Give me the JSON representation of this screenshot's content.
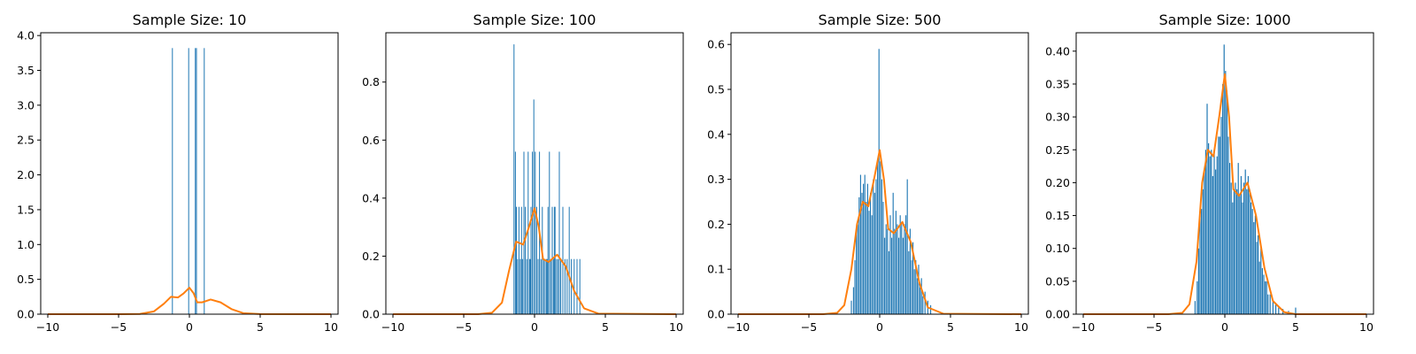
{
  "colors": {
    "hist": "#1f77b4",
    "kde": "#ff7f0e",
    "frame": "#000000"
  },
  "chart_data": [
    {
      "type": "bar",
      "title": "Sample Size: 10",
      "xlim": [
        -10.5,
        10.5
      ],
      "ylim": [
        0,
        4.04
      ],
      "xticks": [
        -10,
        -5,
        0,
        5,
        10
      ],
      "xtick_labels": [
        "−10",
        "−5",
        "0",
        "5",
        "10"
      ],
      "yticks": [
        0,
        0.5,
        1,
        1.5,
        2,
        2.5,
        3,
        3.5,
        4
      ],
      "ytick_labels": [
        "0.0",
        "0.5",
        "1.0",
        "1.5",
        "2.0",
        "2.5",
        "3.0",
        "3.5",
        "4.0"
      ],
      "bin_width": 0.026,
      "hist_bins": [
        [
          -1.2,
          3.82
        ],
        [
          -0.05,
          3.82
        ],
        [
          0.42,
          3.82
        ],
        [
          0.5,
          3.82
        ],
        [
          1.05,
          3.82
        ]
      ],
      "kde": [
        [
          -10,
          0
        ],
        [
          -5,
          0
        ],
        [
          -3.5,
          0.003
        ],
        [
          -2.5,
          0.04
        ],
        [
          -1.8,
          0.15
        ],
        [
          -1.3,
          0.25
        ],
        [
          -0.8,
          0.24
        ],
        [
          -0.4,
          0.3
        ],
        [
          0,
          0.38
        ],
        [
          0.3,
          0.3
        ],
        [
          0.55,
          0.17
        ],
        [
          0.9,
          0.17
        ],
        [
          1.5,
          0.21
        ],
        [
          2.2,
          0.17
        ],
        [
          3,
          0.07
        ],
        [
          3.8,
          0.015
        ],
        [
          5,
          0.001
        ],
        [
          10,
          0
        ]
      ]
    },
    {
      "type": "bar",
      "title": "Sample Size: 100",
      "xlim": [
        -10.5,
        10.5
      ],
      "ylim": [
        0,
        0.97
      ],
      "xticks": [
        -10,
        -5,
        0,
        5,
        10
      ],
      "xtick_labels": [
        "−10",
        "−5",
        "0",
        "5",
        "10"
      ],
      "yticks": [
        0,
        0.2,
        0.4,
        0.6,
        0.8
      ],
      "ytick_labels": [
        "0.0",
        "0.2",
        "0.4",
        "0.6",
        "0.8"
      ],
      "bin_width": 0.054,
      "hist_bins": [
        [
          -1.45,
          0.93
        ],
        [
          -1.35,
          0.56
        ],
        [
          -1.28,
          0.37
        ],
        [
          -1.2,
          0.19
        ],
        [
          -1.1,
          0.37
        ],
        [
          -1.0,
          0.19
        ],
        [
          -0.92,
          0.37
        ],
        [
          -0.85,
          0.19
        ],
        [
          -0.75,
          0.56
        ],
        [
          -0.65,
          0.37
        ],
        [
          -0.55,
          0.19
        ],
        [
          -0.45,
          0.56
        ],
        [
          -0.35,
          0.19
        ],
        [
          -0.25,
          0.37
        ],
        [
          -0.15,
          0.56
        ],
        [
          -0.05,
          0.74
        ],
        [
          0.05,
          0.56
        ],
        [
          0.15,
          0.37
        ],
        [
          0.25,
          0.19
        ],
        [
          0.35,
          0.56
        ],
        [
          0.45,
          0.19
        ],
        [
          0.55,
          0.37
        ],
        [
          0.65,
          0.19
        ],
        [
          0.75,
          0.19
        ],
        [
          0.85,
          0.19
        ],
        [
          0.95,
          0.37
        ],
        [
          1.05,
          0.56
        ],
        [
          1.15,
          0.19
        ],
        [
          1.25,
          0.37
        ],
        [
          1.35,
          0.19
        ],
        [
          1.45,
          0.37
        ],
        [
          1.55,
          0.19
        ],
        [
          1.65,
          0.19
        ],
        [
          1.75,
          0.56
        ],
        [
          1.85,
          0.19
        ],
        [
          2.0,
          0.37
        ],
        [
          2.15,
          0.19
        ],
        [
          2.3,
          0.19
        ],
        [
          2.45,
          0.37
        ],
        [
          2.6,
          0.19
        ],
        [
          2.8,
          0.19
        ],
        [
          3.0,
          0.19
        ],
        [
          3.2,
          0.19
        ],
        [
          1.4,
          0.37
        ],
        [
          0.9,
          0.19
        ],
        [
          -0.3,
          0.19
        ]
      ],
      "kde": [
        [
          -10,
          0
        ],
        [
          -4,
          0
        ],
        [
          -3,
          0.005
        ],
        [
          -2.3,
          0.04
        ],
        [
          -1.8,
          0.15
        ],
        [
          -1.3,
          0.25
        ],
        [
          -0.8,
          0.24
        ],
        [
          -0.4,
          0.3
        ],
        [
          0,
          0.365
        ],
        [
          0.3,
          0.3
        ],
        [
          0.6,
          0.19
        ],
        [
          1.0,
          0.18
        ],
        [
          1.6,
          0.205
        ],
        [
          2.2,
          0.165
        ],
        [
          2.8,
          0.08
        ],
        [
          3.5,
          0.02
        ],
        [
          4.5,
          0.002
        ],
        [
          10,
          0
        ]
      ]
    },
    {
      "type": "bar",
      "title": "Sample Size: 500",
      "xlim": [
        -10.5,
        10.5
      ],
      "ylim": [
        0,
        0.626
      ],
      "xticks": [
        -10,
        -5,
        0,
        5,
        10
      ],
      "xtick_labels": [
        "−10",
        "−5",
        "0",
        "5",
        "10"
      ],
      "yticks": [
        0,
        0.1,
        0.2,
        0.3,
        0.4,
        0.5,
        0.6
      ],
      "ytick_labels": [
        "0.0",
        "0.1",
        "0.2",
        "0.3",
        "0.4",
        "0.5",
        "0.6"
      ],
      "bin_width": 0.07,
      "hist_bins": [
        [
          -2.0,
          0.03
        ],
        [
          -1.85,
          0.06
        ],
        [
          -1.75,
          0.12
        ],
        [
          -1.65,
          0.19
        ],
        [
          -1.55,
          0.2
        ],
        [
          -1.45,
          0.26
        ],
        [
          -1.35,
          0.31
        ],
        [
          -1.25,
          0.27
        ],
        [
          -1.15,
          0.29
        ],
        [
          -1.05,
          0.31
        ],
        [
          -0.95,
          0.25
        ],
        [
          -0.85,
          0.29
        ],
        [
          -0.75,
          0.23
        ],
        [
          -0.65,
          0.27
        ],
        [
          -0.55,
          0.22
        ],
        [
          -0.45,
          0.3
        ],
        [
          -0.35,
          0.27
        ],
        [
          -0.25,
          0.3
        ],
        [
          -0.15,
          0.34
        ],
        [
          -0.05,
          0.59
        ],
        [
          0.05,
          0.34
        ],
        [
          0.15,
          0.3
        ],
        [
          0.25,
          0.25
        ],
        [
          0.35,
          0.17
        ],
        [
          0.45,
          0.2
        ],
        [
          0.55,
          0.19
        ],
        [
          0.65,
          0.14
        ],
        [
          0.75,
          0.22
        ],
        [
          0.85,
          0.17
        ],
        [
          0.95,
          0.27
        ],
        [
          1.05,
          0.19
        ],
        [
          1.15,
          0.23
        ],
        [
          1.25,
          0.2
        ],
        [
          1.35,
          0.17
        ],
        [
          1.45,
          0.22
        ],
        [
          1.55,
          0.2
        ],
        [
          1.65,
          0.17
        ],
        [
          1.75,
          0.2
        ],
        [
          1.85,
          0.22
        ],
        [
          1.95,
          0.3
        ],
        [
          2.05,
          0.14
        ],
        [
          2.15,
          0.19
        ],
        [
          2.25,
          0.12
        ],
        [
          2.35,
          0.16
        ],
        [
          2.45,
          0.1
        ],
        [
          2.55,
          0.12
        ],
        [
          2.65,
          0.08
        ],
        [
          2.75,
          0.11
        ],
        [
          2.85,
          0.06
        ],
        [
          2.95,
          0.08
        ],
        [
          3.05,
          0.04
        ],
        [
          3.2,
          0.05
        ],
        [
          3.4,
          0.03
        ],
        [
          3.6,
          0.02
        ]
      ],
      "kde": [
        [
          -10,
          0
        ],
        [
          -4,
          0
        ],
        [
          -3,
          0.003
        ],
        [
          -2.5,
          0.02
        ],
        [
          -2.0,
          0.1
        ],
        [
          -1.6,
          0.2
        ],
        [
          -1.2,
          0.25
        ],
        [
          -0.8,
          0.24
        ],
        [
          -0.4,
          0.3
        ],
        [
          0,
          0.365
        ],
        [
          0.3,
          0.3
        ],
        [
          0.6,
          0.19
        ],
        [
          1.0,
          0.18
        ],
        [
          1.6,
          0.205
        ],
        [
          2.2,
          0.16
        ],
        [
          2.8,
          0.07
        ],
        [
          3.4,
          0.015
        ],
        [
          4.5,
          0.001
        ],
        [
          10,
          0
        ]
      ]
    },
    {
      "type": "bar",
      "title": "Sample Size: 1000",
      "xlim": [
        -10.5,
        10.5
      ],
      "ylim": [
        0,
        0.428
      ],
      "xticks": [
        -10,
        -5,
        0,
        5,
        10
      ],
      "xtick_labels": [
        "−10",
        "−5",
        "0",
        "5",
        "10"
      ],
      "yticks": [
        0,
        0.05,
        0.1,
        0.15,
        0.2,
        0.25,
        0.3,
        0.35,
        0.4
      ],
      "ytick_labels": [
        "0.00",
        "0.05",
        "0.10",
        "0.15",
        "0.20",
        "0.25",
        "0.30",
        "0.35",
        "0.40"
      ],
      "bin_width": 0.075,
      "hist_bins": [
        [
          -2.1,
          0.02
        ],
        [
          -1.95,
          0.05
        ],
        [
          -1.85,
          0.1
        ],
        [
          -1.75,
          0.15
        ],
        [
          -1.65,
          0.16
        ],
        [
          -1.55,
          0.19
        ],
        [
          -1.45,
          0.22
        ],
        [
          -1.35,
          0.25
        ],
        [
          -1.25,
          0.32
        ],
        [
          -1.15,
          0.26
        ],
        [
          -1.05,
          0.24
        ],
        [
          -0.95,
          0.25
        ],
        [
          -0.85,
          0.21
        ],
        [
          -0.75,
          0.25
        ],
        [
          -0.65,
          0.22
        ],
        [
          -0.55,
          0.24
        ],
        [
          -0.45,
          0.27
        ],
        [
          -0.35,
          0.27
        ],
        [
          -0.25,
          0.3
        ],
        [
          -0.15,
          0.35
        ],
        [
          -0.05,
          0.41
        ],
        [
          0.05,
          0.37
        ],
        [
          0.15,
          0.34
        ],
        [
          0.25,
          0.27
        ],
        [
          0.35,
          0.23
        ],
        [
          0.45,
          0.2
        ],
        [
          0.55,
          0.17
        ],
        [
          0.65,
          0.19
        ],
        [
          0.75,
          0.2
        ],
        [
          0.85,
          0.19
        ],
        [
          0.95,
          0.23
        ],
        [
          1.05,
          0.18
        ],
        [
          1.15,
          0.21
        ],
        [
          1.25,
          0.17
        ],
        [
          1.35,
          0.2
        ],
        [
          1.45,
          0.22
        ],
        [
          1.55,
          0.19
        ],
        [
          1.65,
          0.21
        ],
        [
          1.75,
          0.19
        ],
        [
          1.85,
          0.17
        ],
        [
          1.95,
          0.16
        ],
        [
          2.05,
          0.14
        ],
        [
          2.15,
          0.15
        ],
        [
          2.25,
          0.11
        ],
        [
          2.35,
          0.12
        ],
        [
          2.45,
          0.08
        ],
        [
          2.55,
          0.1
        ],
        [
          2.65,
          0.07
        ],
        [
          2.75,
          0.06
        ],
        [
          2.85,
          0.05
        ],
        [
          2.95,
          0.05
        ],
        [
          3.05,
          0.03
        ],
        [
          3.2,
          0.03
        ],
        [
          3.4,
          0.02
        ],
        [
          3.6,
          0.015
        ],
        [
          3.8,
          0.01
        ],
        [
          4.1,
          0.008
        ],
        [
          4.5,
          0.005
        ],
        [
          5.0,
          0.01
        ]
      ],
      "kde": [
        [
          -10,
          0
        ],
        [
          -4,
          0
        ],
        [
          -3,
          0.002
        ],
        [
          -2.5,
          0.015
        ],
        [
          -2.0,
          0.08
        ],
        [
          -1.6,
          0.2
        ],
        [
          -1.2,
          0.25
        ],
        [
          -0.8,
          0.24
        ],
        [
          -0.4,
          0.3
        ],
        [
          0,
          0.365
        ],
        [
          0.3,
          0.3
        ],
        [
          0.6,
          0.19
        ],
        [
          1.0,
          0.18
        ],
        [
          1.6,
          0.2
        ],
        [
          2.2,
          0.15
        ],
        [
          2.8,
          0.07
        ],
        [
          3.4,
          0.02
        ],
        [
          4.2,
          0.003
        ],
        [
          5,
          0
        ],
        [
          10,
          0
        ]
      ]
    }
  ]
}
